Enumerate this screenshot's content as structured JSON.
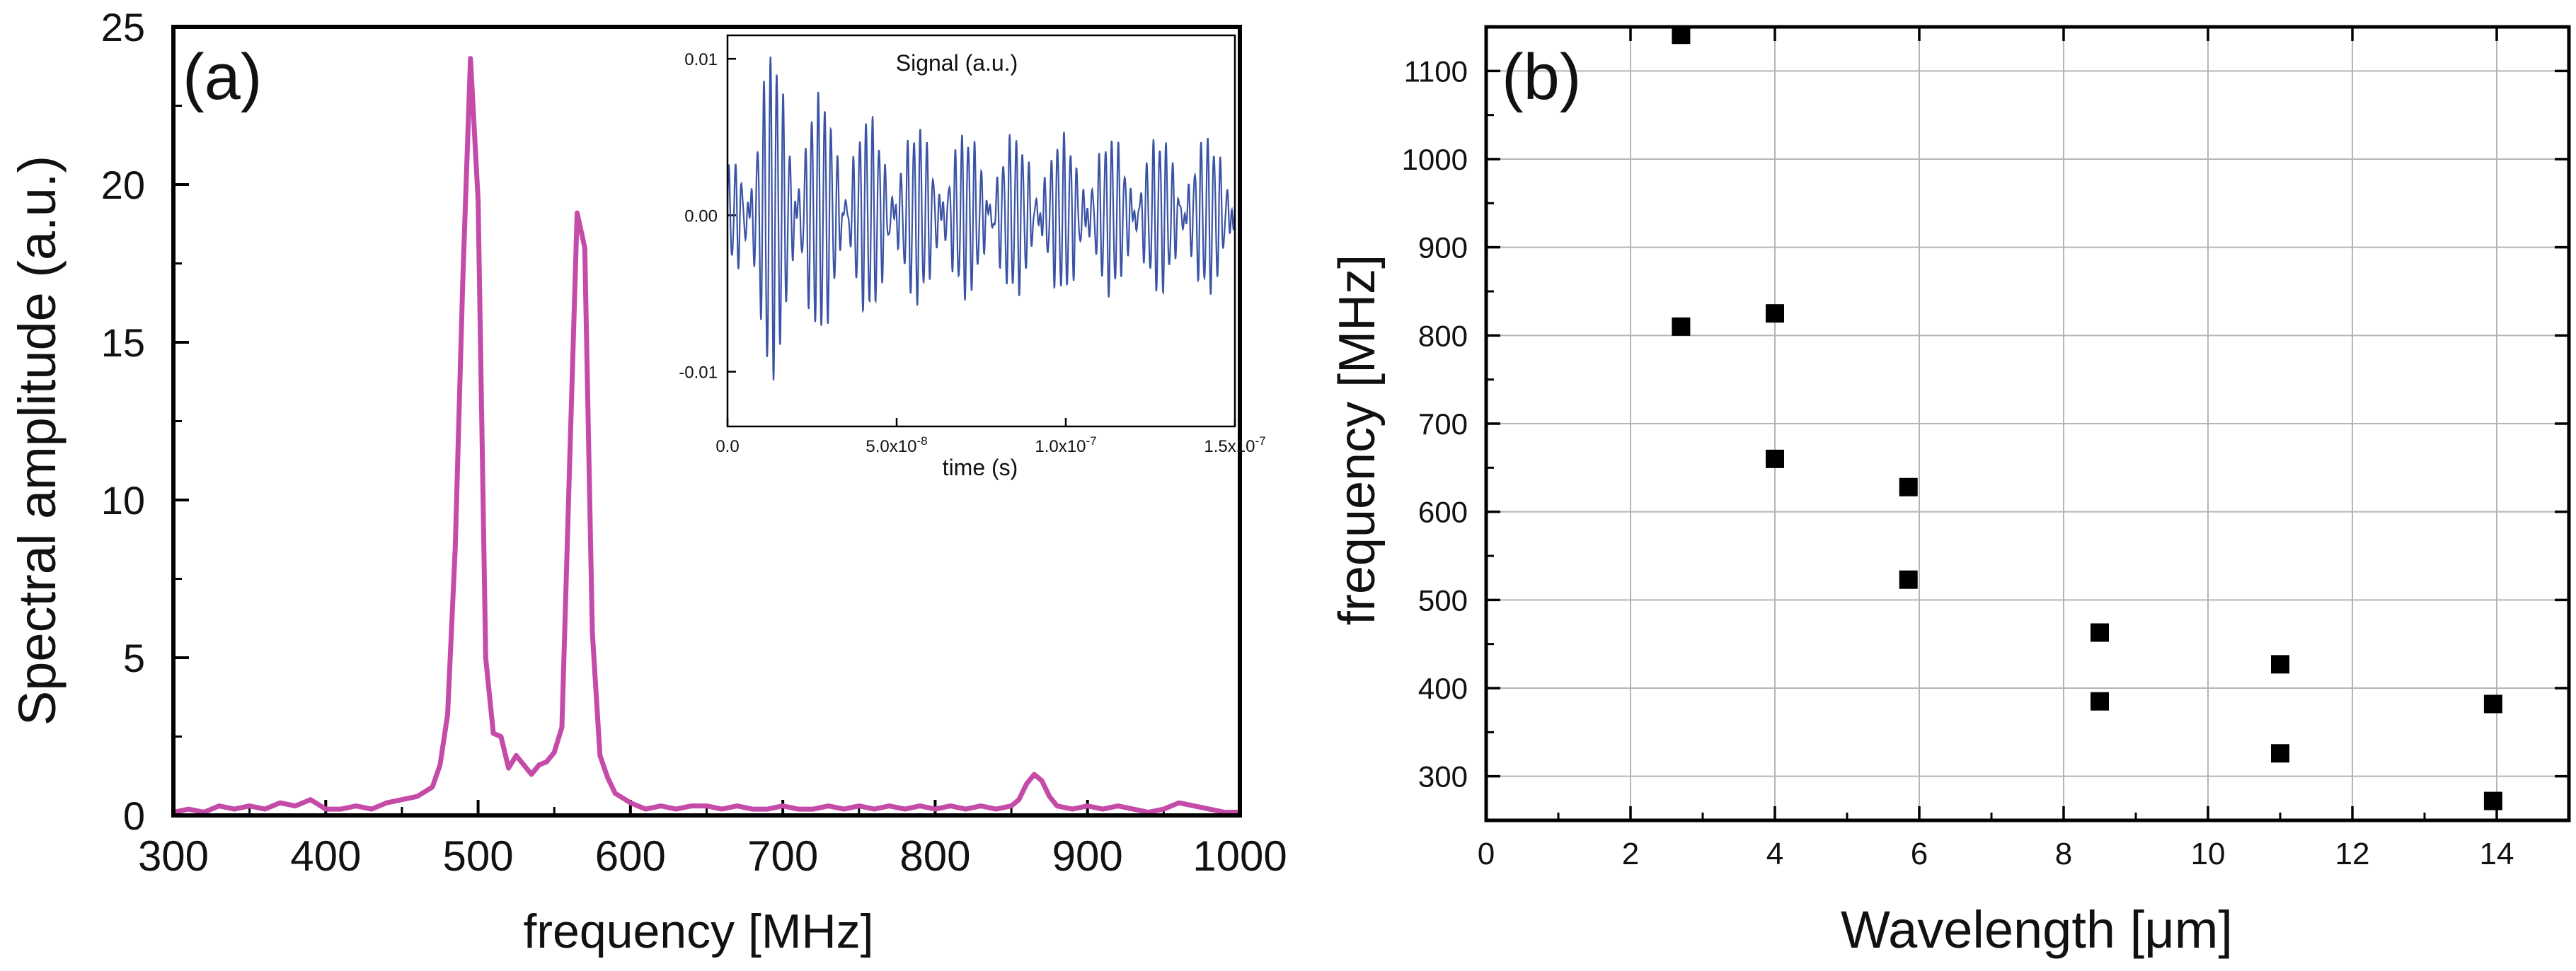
{
  "chart_data": [
    {
      "panel": "(a)",
      "type": "line",
      "xlabel": "frequency [MHz]",
      "ylabel": "Spectral amplitude (a.u.)",
      "xlim": [
        300,
        1000
      ],
      "ylim": [
        0,
        25
      ],
      "xticks": [
        300,
        400,
        500,
        600,
        700,
        800,
        900,
        1000
      ],
      "yticks": [
        0,
        5,
        10,
        15,
        20,
        25
      ],
      "grid": false,
      "colors": {
        "spectrum": "#c54ba8"
      },
      "series": [
        {
          "x": [
            300,
            310,
            320,
            330,
            340,
            350,
            360,
            370,
            380,
            390,
            400,
            410,
            420,
            430,
            440,
            450,
            460,
            470,
            475,
            480,
            485,
            490,
            495,
            500,
            505,
            510,
            515,
            520,
            525,
            530,
            535,
            540,
            545,
            550,
            555,
            560,
            565,
            570,
            575,
            580,
            585,
            590,
            600,
            610,
            620,
            630,
            640,
            650,
            660,
            670,
            680,
            690,
            700,
            710,
            720,
            730,
            740,
            750,
            760,
            770,
            780,
            790,
            800,
            810,
            820,
            830,
            840,
            850,
            855,
            860,
            865,
            870,
            875,
            880,
            890,
            900,
            910,
            920,
            930,
            940,
            950,
            960,
            970,
            980,
            990,
            1000
          ],
          "y": [
            0.1,
            0.2,
            0.1,
            0.3,
            0.2,
            0.3,
            0.2,
            0.4,
            0.3,
            0.5,
            0.2,
            0.2,
            0.3,
            0.2,
            0.4,
            0.5,
            0.6,
            0.9,
            1.6,
            3.2,
            8.5,
            17.0,
            24.0,
            19.5,
            5.0,
            2.6,
            2.5,
            1.5,
            1.9,
            1.6,
            1.3,
            1.6,
            1.7,
            2.0,
            2.8,
            11.0,
            19.1,
            18.0,
            5.8,
            1.9,
            1.2,
            0.7,
            0.4,
            0.2,
            0.3,
            0.2,
            0.3,
            0.3,
            0.2,
            0.3,
            0.2,
            0.2,
            0.3,
            0.2,
            0.2,
            0.3,
            0.2,
            0.3,
            0.2,
            0.3,
            0.2,
            0.3,
            0.2,
            0.3,
            0.2,
            0.3,
            0.2,
            0.3,
            0.5,
            1.0,
            1.3,
            1.1,
            0.6,
            0.3,
            0.2,
            0.3,
            0.2,
            0.3,
            0.2,
            0.1,
            0.2,
            0.4,
            0.3,
            0.2,
            0.1,
            0.1
          ]
        }
      ],
      "inset": {
        "type": "line",
        "title": "Signal (a.u.)",
        "xlabel": "time (s)",
        "xlim": [
          0,
          1.5e-07
        ],
        "ylim": [
          -0.0135,
          0.0115
        ],
        "xticks": [
          0,
          5e-08,
          1e-07,
          1.5e-07
        ],
        "xtick_labels": [
          "0.0",
          "5.0x10",
          "1.0x10",
          "1.5x10"
        ],
        "xtick_exps": [
          "",
          "-8",
          "-7",
          "-7"
        ],
        "yticks": [
          -0.01,
          0,
          0.01
        ],
        "ytick_labels": [
          "-0.01",
          "0.00",
          "0.01"
        ],
        "colors": {
          "signal": "#3a53a4"
        },
        "signal": {
          "type": "decaying beating oscillation",
          "carrier_frequency_hz": 530000000,
          "beat_frequency_hz": 70000000,
          "peak_amplitude": 0.011,
          "peak_time_s": 1.2e-08,
          "sample_count": 1500
        }
      }
    },
    {
      "panel": "(b)",
      "type": "scatter",
      "xlabel": "Wavelength [μm]",
      "ylabel": "frequency [MHz]",
      "xlim": [
        0,
        15
      ],
      "ylim": [
        250,
        1150
      ],
      "xticks": [
        0,
        2,
        4,
        6,
        8,
        10,
        12,
        14
      ],
      "yticks": [
        300,
        400,
        500,
        600,
        700,
        800,
        900,
        1000,
        1100
      ],
      "grid": true,
      "colors": {
        "points": "#000000"
      },
      "series": [
        {
          "points": [
            {
              "x": 2.7,
              "y": 1141
            },
            {
              "x": 2.7,
              "y": 810
            },
            {
              "x": 4.0,
              "y": 825
            },
            {
              "x": 4.0,
              "y": 660
            },
            {
              "x": 5.85,
              "y": 628
            },
            {
              "x": 5.85,
              "y": 523
            },
            {
              "x": 8.5,
              "y": 463
            },
            {
              "x": 8.5,
              "y": 385
            },
            {
              "x": 11.0,
              "y": 427
            },
            {
              "x": 11.0,
              "y": 326
            },
            {
              "x": 13.95,
              "y": 382
            },
            {
              "x": 13.95,
              "y": 272
            }
          ]
        }
      ]
    }
  ]
}
